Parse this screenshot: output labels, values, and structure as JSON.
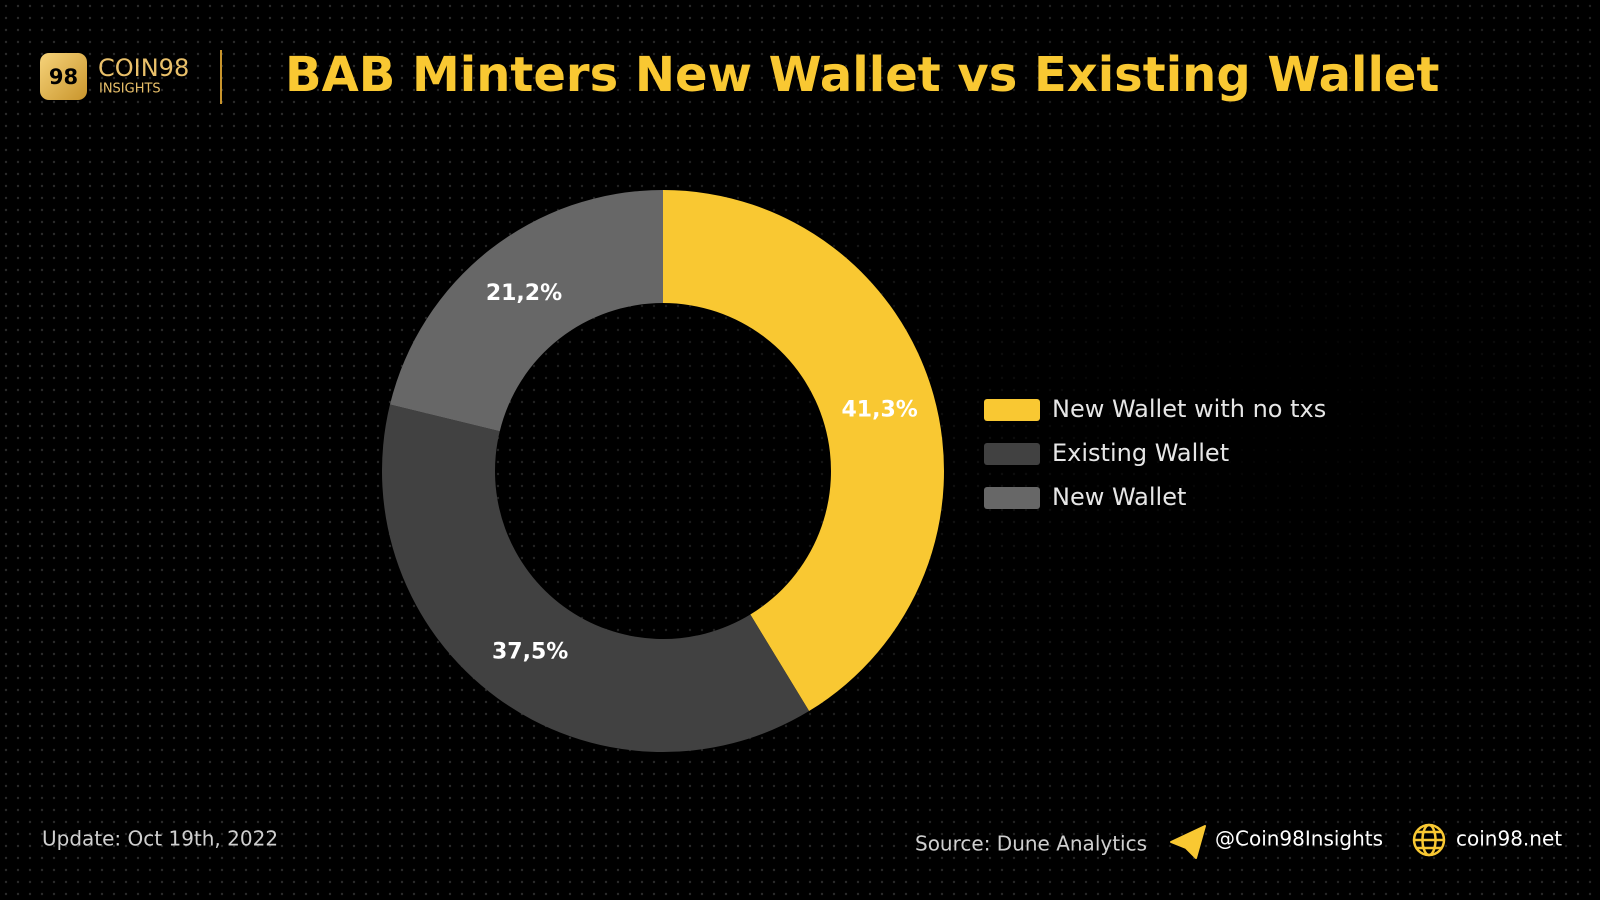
{
  "branding": {
    "logo_mark": "98",
    "brand": "COIN98",
    "sub": "INSIGHTS"
  },
  "chart_data": {
    "type": "donut",
    "title": "BAB Minters New Wallet vs Existing Wallet",
    "categories": [
      "New Wallet with no txs",
      "Existing Wallet",
      "New Wallet"
    ],
    "values": [
      41.3,
      37.5,
      21.2
    ],
    "value_labels": [
      "41,3%",
      "37,5%",
      "21,2%"
    ],
    "colors": [
      "#f9c832",
      "#414141",
      "#676767"
    ],
    "legend": "right"
  },
  "footer": {
    "update": "Update: Oct 19th, 2022",
    "source": "Source: Dune Analytics",
    "telegram": "@Coin98Insights",
    "website": "coin98.net"
  }
}
